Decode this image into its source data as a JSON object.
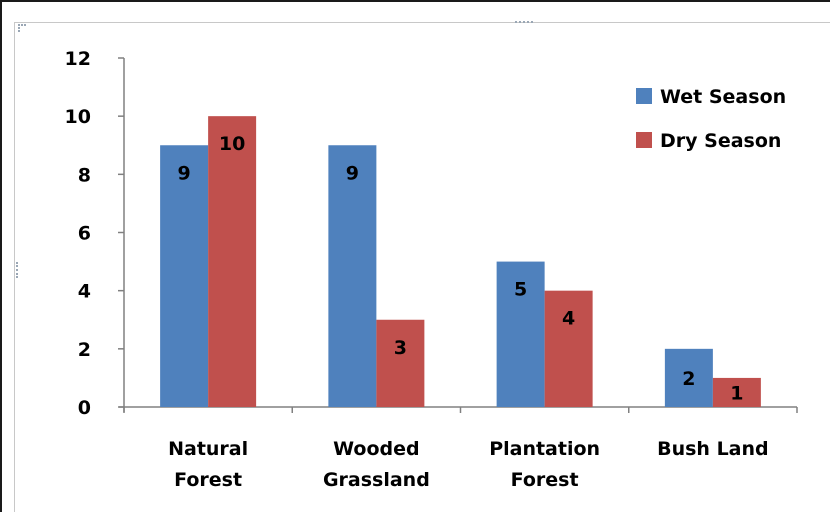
{
  "chart_data": {
    "type": "bar",
    "categories": [
      [
        "Natural",
        "Forest"
      ],
      [
        "Wooded",
        "Grassland"
      ],
      [
        "Plantation",
        "Forest"
      ],
      [
        "Bush Land"
      ]
    ],
    "series": [
      {
        "name": "Wet Season",
        "values": [
          9,
          9,
          5,
          2
        ],
        "color": "#4f81bd"
      },
      {
        "name": "Dry Season",
        "values": [
          10,
          3,
          4,
          1
        ],
        "color": "#c0504d"
      }
    ],
    "ylim": [
      0,
      12
    ],
    "yticks": [
      0,
      2,
      4,
      6,
      8,
      10,
      12
    ],
    "grid": false,
    "legend": "top-right",
    "data_labels": true
  }
}
